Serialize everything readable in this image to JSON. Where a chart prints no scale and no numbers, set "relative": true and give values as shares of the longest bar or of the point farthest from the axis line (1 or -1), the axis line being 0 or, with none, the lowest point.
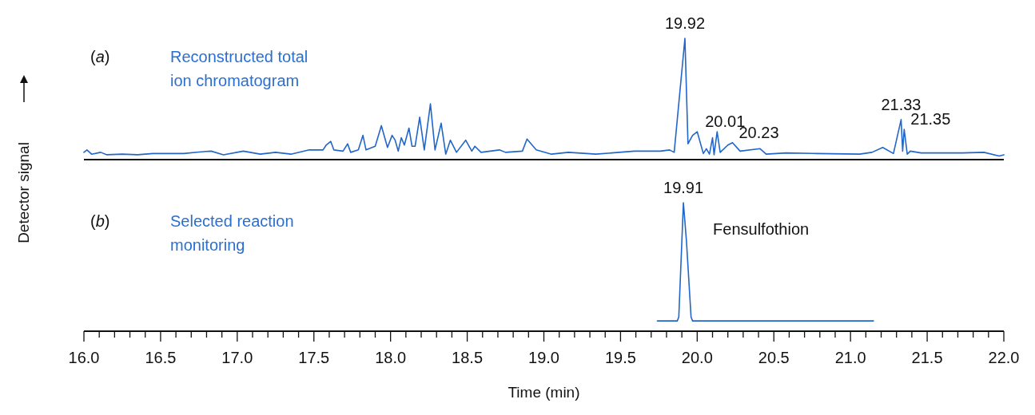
{
  "chart_data": [
    {
      "type": "line",
      "relative": true,
      "title": "(a)",
      "subtitle": "Reconstructed total ion chromatogram",
      "ylabel": "Detector signal",
      "xlim": [
        16,
        22
      ],
      "tick_labels": false,
      "series": [
        {
          "color": "#2166c8",
          "x": [
            16.0,
            16.02,
            16.05,
            16.11,
            16.15,
            16.25,
            16.35,
            16.45,
            16.55,
            16.65,
            16.75,
            16.83,
            16.91,
            17.04,
            17.15,
            17.25,
            17.35,
            17.47,
            17.56,
            17.58,
            17.61,
            17.63,
            17.69,
            17.72,
            17.74,
            17.79,
            17.82,
            17.84,
            17.9,
            17.94,
            17.98,
            18.01,
            18.03,
            18.05,
            18.07,
            18.09,
            18.12,
            18.14,
            18.16,
            18.19,
            18.22,
            18.26,
            18.29,
            18.33,
            18.36,
            18.39,
            18.43,
            18.49,
            18.53,
            18.55,
            18.59,
            18.71,
            18.75,
            18.86,
            18.89,
            18.95,
            19.05,
            19.16,
            19.34,
            19.59,
            19.76,
            19.82,
            19.85,
            19.92,
            19.94,
            19.97,
            20.0,
            20.04,
            20.06,
            20.08,
            20.1,
            20.11,
            20.13,
            20.15,
            20.2,
            20.23,
            20.28,
            20.41,
            20.45,
            20.58,
            20.78,
            21.06,
            21.14,
            21.21,
            21.28,
            21.33,
            21.34,
            21.35,
            21.37,
            21.39,
            21.46,
            21.73,
            21.87,
            21.97,
            22.0
          ],
          "values": [
            0.06,
            0.08,
            0.045,
            0.06,
            0.04,
            0.045,
            0.04,
            0.05,
            0.05,
            0.05,
            0.063,
            0.07,
            0.04,
            0.07,
            0.045,
            0.06,
            0.045,
            0.08,
            0.08,
            0.12,
            0.15,
            0.08,
            0.07,
            0.13,
            0.06,
            0.08,
            0.2,
            0.08,
            0.11,
            0.28,
            0.1,
            0.2,
            0.16,
            0.07,
            0.18,
            0.12,
            0.26,
            0.11,
            0.11,
            0.35,
            0.08,
            0.46,
            0.08,
            0.3,
            0.045,
            0.16,
            0.06,
            0.16,
            0.07,
            0.11,
            0.06,
            0.08,
            0.06,
            0.07,
            0.17,
            0.08,
            0.045,
            0.06,
            0.045,
            0.07,
            0.07,
            0.08,
            0.06,
            1,
            0.13,
            0.2,
            0.23,
            0.05,
            0.09,
            0.045,
            0.18,
            0.04,
            0.23,
            0.06,
            0.12,
            0.14,
            0.07,
            0.09,
            0.045,
            0.055,
            0.05,
            0.045,
            0.06,
            0.1,
            0.05,
            0.33,
            0.07,
            0.25,
            0.045,
            0.07,
            0.055,
            0.055,
            0.06,
            0.03,
            0.04
          ]
        }
      ],
      "annotations": [
        {
          "text": "19.92",
          "x": 19.92,
          "y": 1
        },
        {
          "text": "20.01",
          "x": 20.01,
          "y": 0.23
        },
        {
          "text": "20.23",
          "x": 20.23,
          "y": 0.14
        },
        {
          "text": "21.33",
          "x": 21.33,
          "y": 0.33
        },
        {
          "text": "21.35",
          "x": 21.35,
          "y": 0.25
        }
      ]
    },
    {
      "type": "line",
      "relative": true,
      "title": "(b)",
      "subtitle": "Selected reaction monitoring",
      "xlabel": "Time (min)",
      "xlim": [
        16,
        22
      ],
      "tick_labels": "x",
      "xticks": [
        {
          "value": 16,
          "label": "16.0"
        },
        {
          "value": 16.1,
          "label": null
        },
        {
          "value": 16.2,
          "label": null
        },
        {
          "value": 16.3,
          "label": null
        },
        {
          "value": 16.4,
          "label": null
        },
        {
          "value": 16.5,
          "label": "16.5"
        },
        {
          "value": 16.6,
          "label": null
        },
        {
          "value": 16.7,
          "label": null
        },
        {
          "value": 16.8,
          "label": null
        },
        {
          "value": 16.9,
          "label": null
        },
        {
          "value": 17,
          "label": "17.0"
        },
        {
          "value": 17.1,
          "label": null
        },
        {
          "value": 17.2,
          "label": null
        },
        {
          "value": 17.3,
          "label": null
        },
        {
          "value": 17.4,
          "label": null
        },
        {
          "value": 17.5,
          "label": "17.5"
        },
        {
          "value": 17.6,
          "label": null
        },
        {
          "value": 17.7,
          "label": null
        },
        {
          "value": 17.8,
          "label": null
        },
        {
          "value": 17.9,
          "label": null
        },
        {
          "value": 18,
          "label": "18.0"
        },
        {
          "value": 18.1,
          "label": null
        },
        {
          "value": 18.2,
          "label": null
        },
        {
          "value": 18.3,
          "label": null
        },
        {
          "value": 18.4,
          "label": null
        },
        {
          "value": 18.5,
          "label": "18.5"
        },
        {
          "value": 18.6,
          "label": null
        },
        {
          "value": 18.7,
          "label": null
        },
        {
          "value": 18.8,
          "label": null
        },
        {
          "value": 18.9,
          "label": null
        },
        {
          "value": 19,
          "label": "19.0"
        },
        {
          "value": 19.1,
          "label": null
        },
        {
          "value": 19.2,
          "label": null
        },
        {
          "value": 19.3,
          "label": null
        },
        {
          "value": 19.4,
          "label": null
        },
        {
          "value": 19.5,
          "label": "19.5"
        },
        {
          "value": 19.6,
          "label": null
        },
        {
          "value": 19.7,
          "label": null
        },
        {
          "value": 19.8,
          "label": null
        },
        {
          "value": 19.9,
          "label": null
        },
        {
          "value": 20,
          "label": "20.0"
        },
        {
          "value": 20.1,
          "label": null
        },
        {
          "value": 20.2,
          "label": null
        },
        {
          "value": 20.3,
          "label": null
        },
        {
          "value": 20.4,
          "label": null
        },
        {
          "value": 20.5,
          "label": "20.5"
        },
        {
          "value": 20.6,
          "label": null
        },
        {
          "value": 20.7,
          "label": null
        },
        {
          "value": 20.8,
          "label": null
        },
        {
          "value": 20.9,
          "label": null
        },
        {
          "value": 21,
          "label": "21.0"
        },
        {
          "value": 21.1,
          "label": null
        },
        {
          "value": 21.2,
          "label": null
        },
        {
          "value": 21.3,
          "label": null
        },
        {
          "value": 21.4,
          "label": null
        },
        {
          "value": 21.5,
          "label": "21.5"
        },
        {
          "value": 21.6,
          "label": null
        },
        {
          "value": 21.7,
          "label": null
        },
        {
          "value": 21.8,
          "label": null
        },
        {
          "value": 21.9,
          "label": null
        },
        {
          "value": 22,
          "label": "22.0"
        }
      ],
      "series": [
        {
          "color": "#2166c8",
          "x": [
            19.74,
            19.87,
            19.88,
            19.9,
            19.91,
            19.93,
            19.96,
            19.97,
            21.15
          ],
          "values": [
            0.08,
            0.08,
            0.11,
            0.7,
            1,
            0.7,
            0.11,
            0.08,
            0.08
          ]
        }
      ],
      "annotations": [
        {
          "text": "19.91",
          "x": 19.91,
          "y": 1
        },
        "Fensulfothion"
      ]
    }
  ]
}
